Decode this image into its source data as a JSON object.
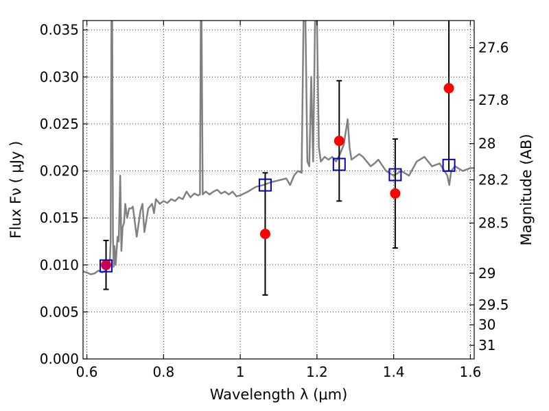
{
  "chart_data": {
    "type": "line",
    "xlabel": "Wavelength  λ (μm)",
    "ylabel": "Flux  Fν  ( μJy )",
    "y2label": "Magnitude (AB)",
    "xlim": [
      0.59,
      1.61
    ],
    "ylim": [
      0.0,
      0.036
    ],
    "grid": true,
    "xticks": [
      0.6,
      0.8,
      1.0,
      1.2,
      1.4,
      1.6
    ],
    "xtick_labels": [
      "0.6",
      "0.8",
      "1",
      "1.2",
      "1.4",
      "1.6"
    ],
    "yticks": [
      0.0,
      0.005,
      0.01,
      0.015,
      0.02,
      0.025,
      0.03,
      0.035
    ],
    "ytick_labels": [
      "0.000",
      "0.005",
      "0.010",
      "0.015",
      "0.020",
      "0.025",
      "0.030",
      "0.035"
    ],
    "y2_ticks": [
      {
        "label": "27.6",
        "mag": 27.6
      },
      {
        "label": "27.8",
        "mag": 27.8
      },
      {
        "label": "28",
        "mag": 28.0
      },
      {
        "label": "28.2",
        "mag": 28.2
      },
      {
        "label": "28.5",
        "mag": 28.5
      },
      {
        "label": "29",
        "mag": 29.0
      },
      {
        "label": "29.5",
        "mag": 29.5
      },
      {
        "label": "30",
        "mag": 30.0
      },
      {
        "label": "31",
        "mag": 31.0
      }
    ],
    "series": [
      {
        "kind": "line",
        "color": "#808080",
        "x": [
          0.59,
          0.6,
          0.61,
          0.62,
          0.63,
          0.64,
          0.65,
          0.655,
          0.66,
          0.662,
          0.664,
          0.666,
          0.668,
          0.67,
          0.672,
          0.675,
          0.68,
          0.683,
          0.687,
          0.69,
          0.693,
          0.697,
          0.7,
          0.705,
          0.71,
          0.715,
          0.72,
          0.73,
          0.74,
          0.745,
          0.75,
          0.76,
          0.77,
          0.775,
          0.78,
          0.79,
          0.8,
          0.81,
          0.82,
          0.83,
          0.84,
          0.85,
          0.86,
          0.87,
          0.88,
          0.89,
          0.895,
          0.897,
          0.899,
          0.902,
          0.91,
          0.92,
          0.93,
          0.94,
          0.95,
          0.96,
          0.97,
          0.98,
          0.99,
          1.0,
          1.02,
          1.04,
          1.06,
          1.08,
          1.1,
          1.12,
          1.13,
          1.14,
          1.15,
          1.16,
          1.165,
          1.17,
          1.175,
          1.18,
          1.185,
          1.19,
          1.195,
          1.2,
          1.205,
          1.21,
          1.22,
          1.23,
          1.24,
          1.25,
          1.26,
          1.27,
          1.28,
          1.285,
          1.29,
          1.3,
          1.31,
          1.32,
          1.33,
          1.34,
          1.35,
          1.36,
          1.38,
          1.4,
          1.42,
          1.44,
          1.46,
          1.48,
          1.5,
          1.52,
          1.54,
          1.545,
          1.55,
          1.56,
          1.58,
          1.6,
          1.61
        ],
        "y": [
          0.0093,
          0.0092,
          0.009,
          0.0091,
          0.0094,
          0.0092,
          0.0094,
          0.0098,
          0.0105,
          0.0125,
          0.036,
          0.036,
          0.013,
          0.0098,
          0.012,
          0.01,
          0.013,
          0.0125,
          0.0195,
          0.0115,
          0.014,
          0.0145,
          0.0165,
          0.015,
          0.016,
          0.016,
          0.0162,
          0.013,
          0.0158,
          0.0165,
          0.0135,
          0.016,
          0.0165,
          0.0155,
          0.017,
          0.0165,
          0.0168,
          0.0166,
          0.017,
          0.0168,
          0.0172,
          0.017,
          0.0178,
          0.0172,
          0.0176,
          0.0174,
          0.0175,
          0.036,
          0.036,
          0.0175,
          0.0178,
          0.0175,
          0.0178,
          0.018,
          0.0176,
          0.0178,
          0.0175,
          0.0178,
          0.0173,
          0.0174,
          0.0178,
          0.0183,
          0.0185,
          0.0188,
          0.019,
          0.0192,
          0.0185,
          0.0195,
          0.02,
          0.0198,
          0.036,
          0.036,
          0.021,
          0.0205,
          0.03,
          0.021,
          0.036,
          0.036,
          0.0225,
          0.021,
          0.0215,
          0.0212,
          0.0215,
          0.021,
          0.0218,
          0.0228,
          0.0255,
          0.0225,
          0.0212,
          0.0215,
          0.0218,
          0.0215,
          0.021,
          0.0205,
          0.0208,
          0.0212,
          0.02,
          0.0195,
          0.02,
          0.0195,
          0.021,
          0.0215,
          0.0205,
          0.0208,
          0.0195,
          0.0185,
          0.02,
          0.0205,
          0.02,
          0.0203,
          0.0203
        ]
      },
      {
        "kind": "errorbar",
        "color": "#ff0000",
        "ecolor": "#000000",
        "x": [
          0.65,
          1.065,
          1.258,
          1.404,
          1.544
        ],
        "y": [
          0.01,
          0.0133,
          0.0232,
          0.0176,
          0.0288
        ],
        "yerr_low": [
          0.0026,
          0.0065,
          0.0064,
          0.0058,
          0.0088
        ],
        "yerr_high": [
          0.0026,
          0.0065,
          0.0064,
          0.0058,
          0.0088
        ],
        "marker": "circle"
      },
      {
        "kind": "marker",
        "color": "#0000cc",
        "x": [
          0.65,
          1.065,
          1.258,
          1.404,
          1.544
        ],
        "y": [
          0.0099,
          0.0185,
          0.0207,
          0.0196,
          0.0206
        ],
        "marker": "open-square"
      }
    ]
  }
}
